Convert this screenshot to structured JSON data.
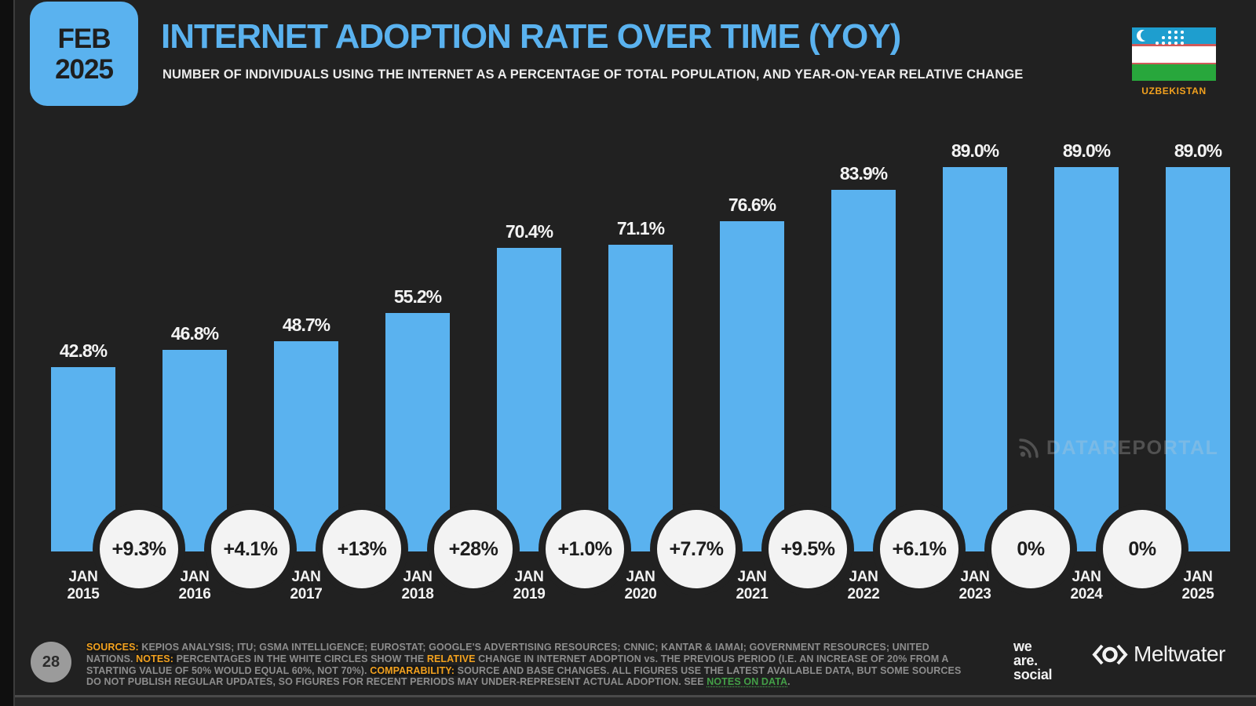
{
  "slide": {
    "page_number": "28",
    "date_badge": {
      "month": "FEB",
      "year": "2025"
    },
    "title": "INTERNET ADOPTION RATE OVER TIME (YOY)",
    "subtitle": "NUMBER OF INDIVIDUALS USING THE INTERNET AS A PERCENTAGE OF TOTAL POPULATION, AND YEAR-ON-YEAR RELATIVE CHANGE",
    "country": "UZBEKISTAN",
    "watermark": "DATAREPORTAL"
  },
  "chart_data": {
    "type": "bar",
    "title": "INTERNET ADOPTION RATE OVER TIME (YOY)",
    "categories": [
      "JAN 2015",
      "JAN 2016",
      "JAN 2017",
      "JAN 2018",
      "JAN 2019",
      "JAN 2020",
      "JAN 2021",
      "JAN 2022",
      "JAN 2023",
      "JAN 2024",
      "JAN 2025"
    ],
    "values": [
      42.8,
      46.8,
      48.7,
      55.2,
      70.4,
      71.1,
      76.6,
      83.9,
      89.0,
      89.0,
      89.0
    ],
    "value_labels": [
      "42.8%",
      "46.8%",
      "48.7%",
      "55.2%",
      "70.4%",
      "71.1%",
      "76.6%",
      "83.9%",
      "89.0%",
      "89.0%",
      "89.0%"
    ],
    "yoy_changes": [
      "+9.3%",
      "+4.1%",
      "+13%",
      "+28%",
      "+1.0%",
      "+7.7%",
      "+9.5%",
      "+6.1%",
      "0%",
      "0%"
    ],
    "ylim": [
      0,
      100
    ],
    "bar_color": "#5ab2ef",
    "grid": false,
    "legend": false
  },
  "footer": {
    "segments": [
      {
        "style": "label",
        "text": "SOURCES: "
      },
      {
        "style": "normal",
        "text": "KEPIOS ANALYSIS; ITU; GSMA INTELLIGENCE; EUROSTAT; GOOGLE'S ADVERTISING RESOURCES; CNNIC; KANTAR & IAMAI; GOVERNMENT RESOURCES; UNITED NATIONS. "
      },
      {
        "style": "label",
        "text": "NOTES: "
      },
      {
        "style": "normal",
        "text": "PERCENTAGES IN THE WHITE CIRCLES SHOW THE "
      },
      {
        "style": "highlight",
        "text": "RELATIVE"
      },
      {
        "style": "normal",
        "text": " CHANGE IN INTERNET ADOPTION vs. THE PREVIOUS PERIOD (I.E. AN INCREASE OF 20% FROM A STARTING VALUE OF 50% WOULD EQUAL 60%, NOT 70%). "
      },
      {
        "style": "label",
        "text": "COMPARABILITY: "
      },
      {
        "style": "normal",
        "text": "SOURCE AND BASE CHANGES. ALL FIGURES USE THE LATEST AVAILABLE DATA, BUT SOME SOURCES DO NOT PUBLISH REGULAR UPDATES, SO FIGURES FOR RECENT PERIODS MAY UNDER-REPRESENT ACTUAL ADOPTION. SEE "
      },
      {
        "style": "link",
        "text": "NOTES ON DATA"
      },
      {
        "style": "normal",
        "text": "."
      }
    ],
    "logos": {
      "we_are_social_lines": [
        "we",
        "are.",
        "social"
      ],
      "meltwater": "Meltwater"
    }
  },
  "colors": {
    "background": "#212121",
    "accent_blue": "#5ab2ef",
    "accent_orange": "#f2a11e",
    "link_green": "#43a047",
    "circle_fill": "#f3f3f3"
  }
}
